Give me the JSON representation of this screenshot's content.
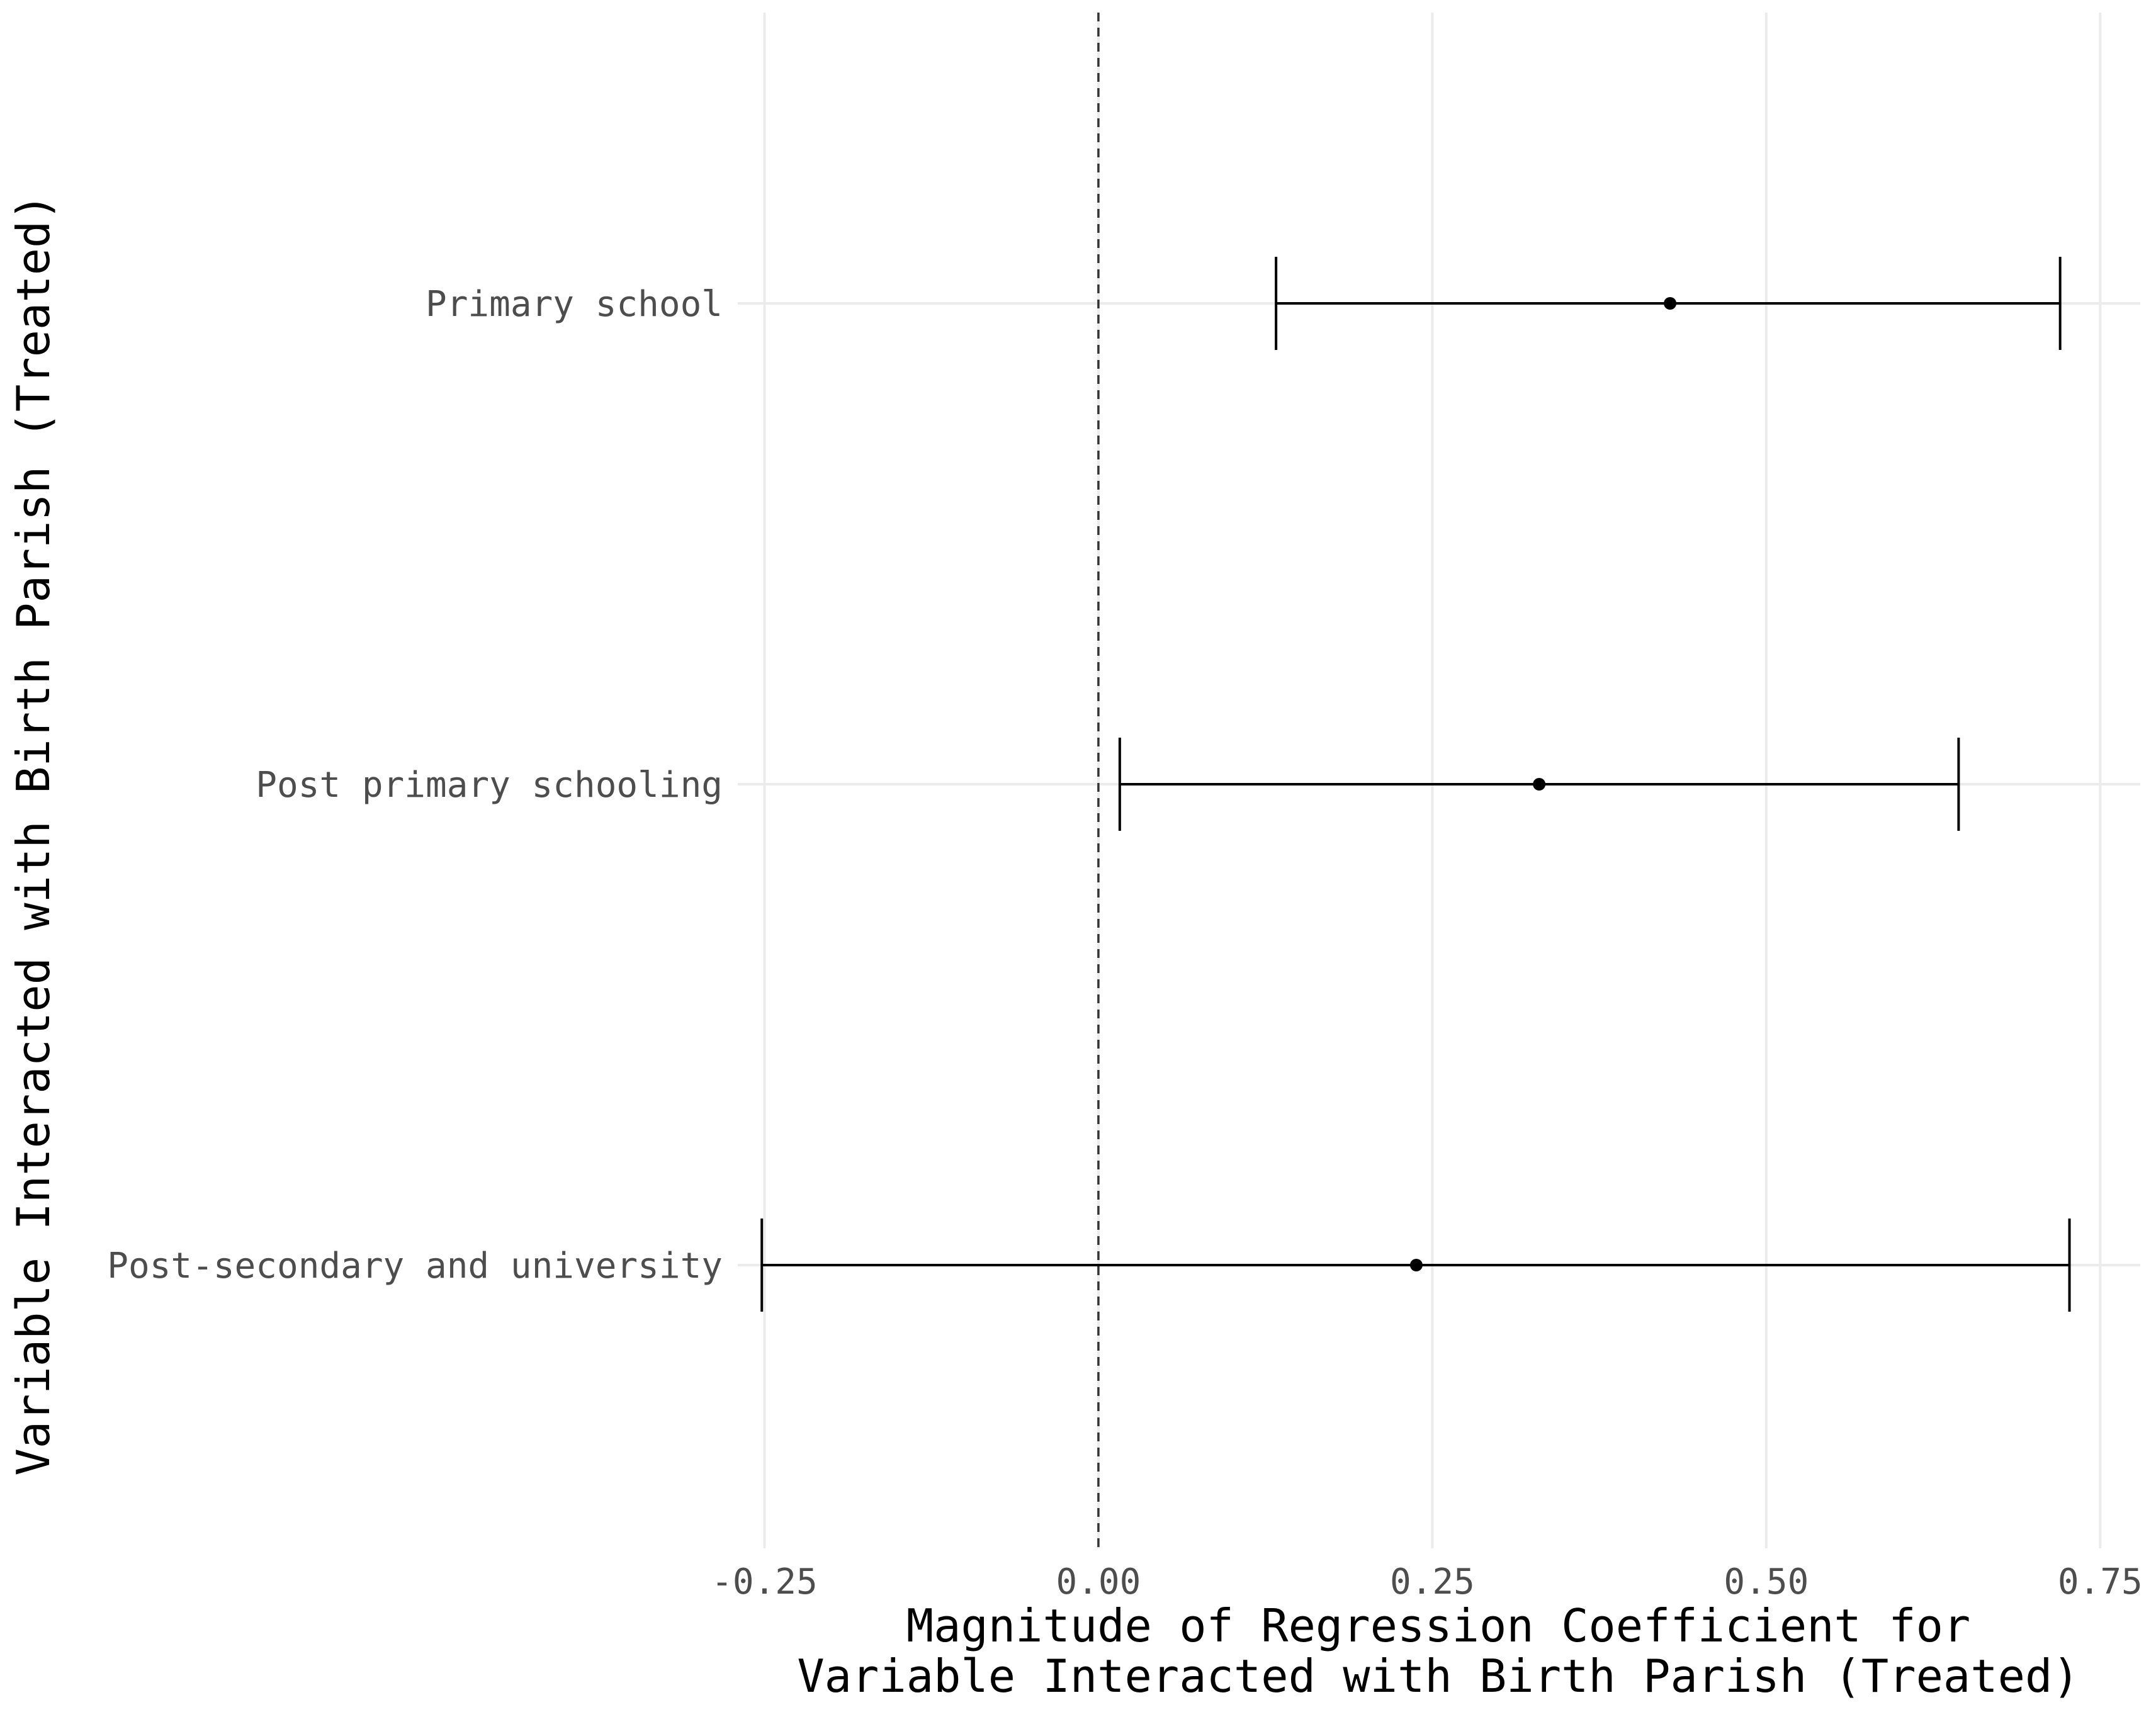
{
  "chart_data": {
    "type": "errorbar",
    "orientation": "horizontal",
    "categories": [
      "Primary school",
      "Post primary schooling",
      "Post-secondary and university"
    ],
    "series": [
      {
        "estimates": [
          0.428,
          0.33,
          0.238
        ],
        "lower": [
          0.133,
          0.016,
          -0.252
        ],
        "upper": [
          0.72,
          0.644,
          0.727
        ]
      }
    ],
    "xlim": [
      -0.27,
      0.78
    ],
    "xticks": [
      -0.25,
      0.0,
      0.25,
      0.5,
      0.75
    ],
    "xtick_labels": [
      "-0.25",
      "0.00",
      "0.25",
      "0.50",
      "0.75"
    ],
    "reference_line": {
      "x": 0,
      "style": "dashed"
    },
    "xlabel_lines": [
      "Magnitude of Regression Coefficient for",
      "Variable Interacted with Birth Parish (Treated)"
    ],
    "ylabel": "Variable Interacted with Birth Parish (Treated)",
    "grid": true,
    "legend": "none"
  }
}
